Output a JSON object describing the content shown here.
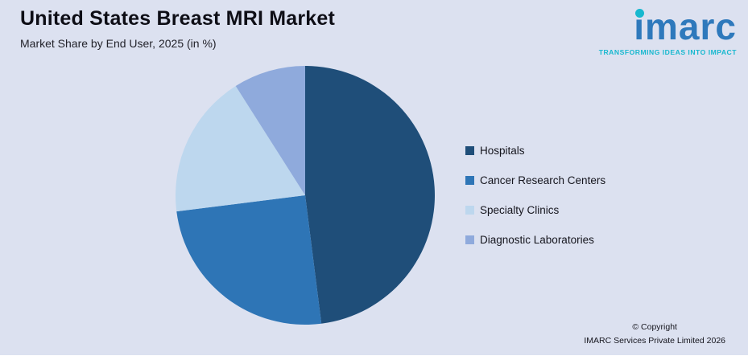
{
  "page": {
    "title": "United States Breast MRI Market",
    "subtitle": "Market Share by End User, 2025 (in %)"
  },
  "logo": {
    "text": "imarc",
    "tagline": "TRANSFORMING IDEAS INTO IMPACT",
    "brand_blue": "#2e79bc",
    "brand_teal": "#17b8cf"
  },
  "footer": {
    "copyright_line1": "© Copyright",
    "copyright_line2": "IMARC Services Private Limited 2026"
  },
  "colors": {
    "background": "#dce1f0"
  },
  "chart_data": {
    "type": "pie",
    "title": "United States Breast MRI Market",
    "subtitle": "Market Share by End User, 2025 (in %)",
    "categories": [
      "Hospitals",
      "Cancer Research Centers",
      "Specialty Clinics",
      "Diagnostic Laboratories"
    ],
    "values": [
      48,
      25,
      18,
      9
    ],
    "units": "%",
    "colors": [
      "#1f4e79",
      "#2e75b6",
      "#bdd7ee",
      "#8faadc"
    ],
    "start_angle_deg": 0,
    "direction": "clockwise",
    "legend_position": "right",
    "data_labels": false
  }
}
